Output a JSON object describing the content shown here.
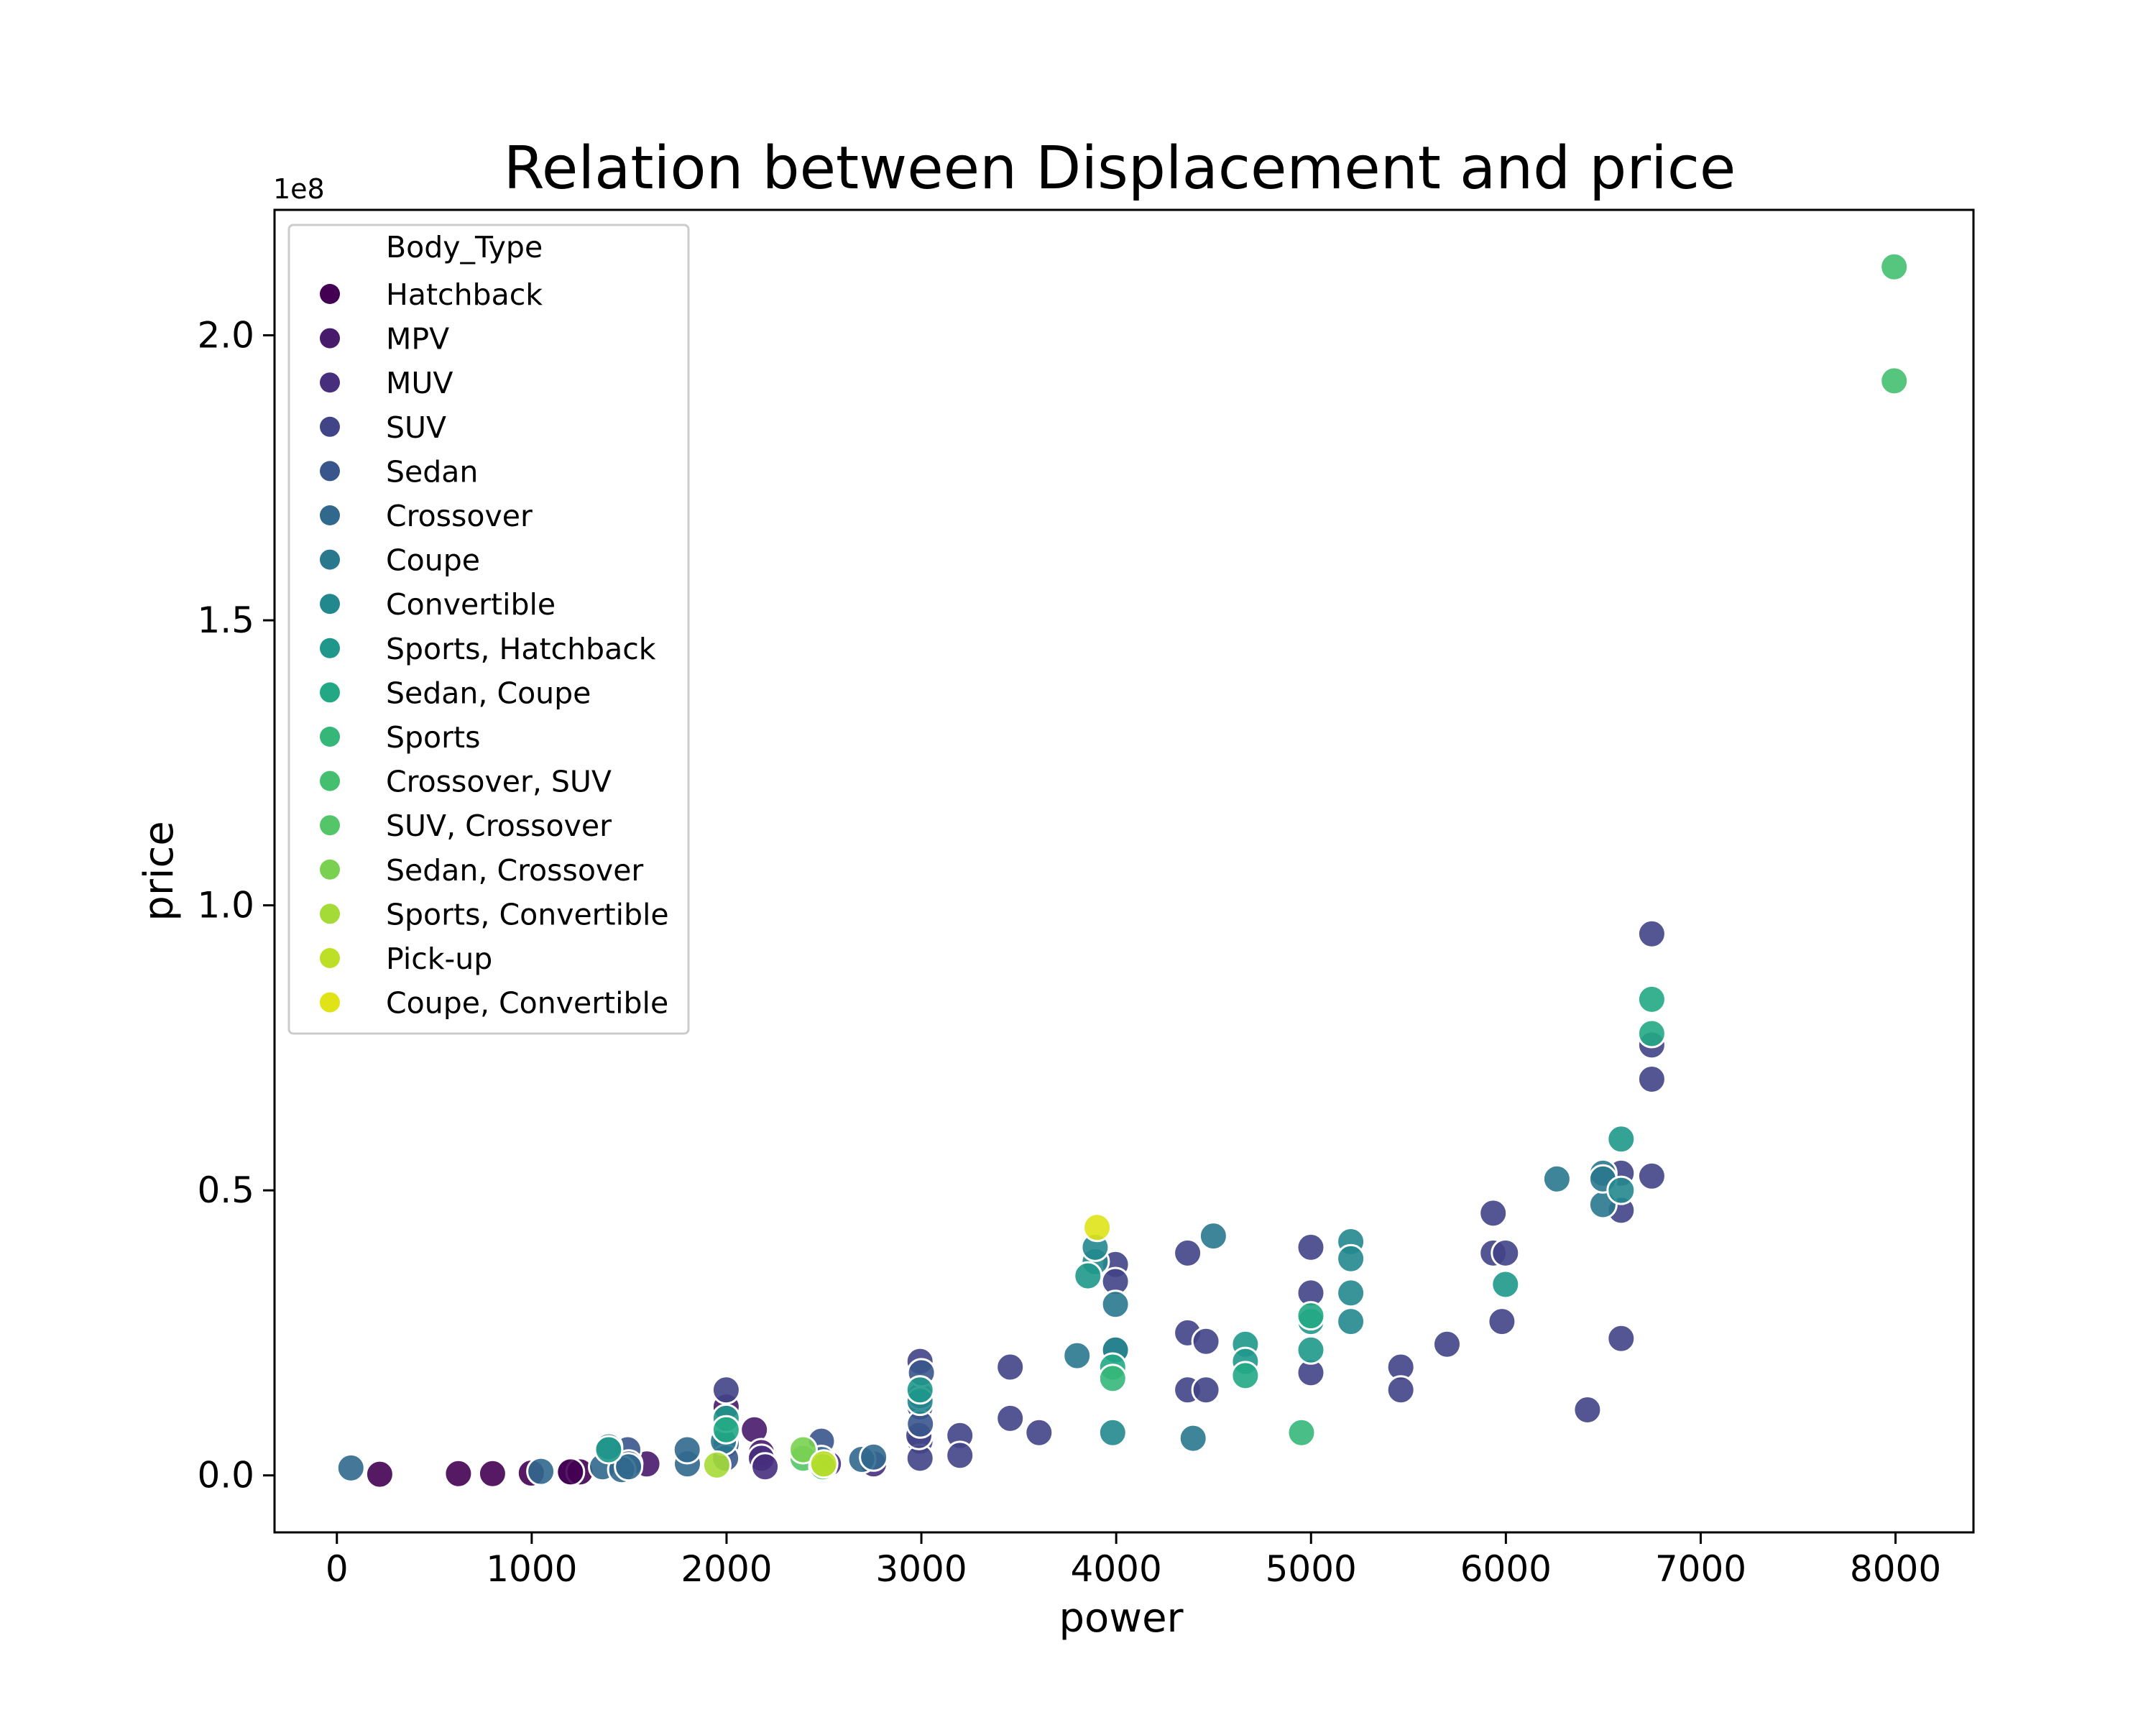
{
  "chart_data": {
    "type": "scatter",
    "title": "Relation between Displacement and price",
    "xlabel": "power",
    "ylabel": "price",
    "y_multiplier_label": "1e8",
    "xlim": [
      -320,
      8400
    ],
    "ylim": [
      -0.1,
      2.22
    ],
    "y_scale": 100000000,
    "x_ticks": [
      0,
      1000,
      2000,
      3000,
      4000,
      5000,
      6000,
      7000,
      8000
    ],
    "x_tick_labels": [
      "0",
      "1000",
      "2000",
      "3000",
      "4000",
      "5000",
      "6000",
      "7000",
      "8000"
    ],
    "y_ticks": [
      0.0,
      0.5,
      1.0,
      1.5,
      2.0
    ],
    "y_tick_labels": [
      "0.0",
      "0.5",
      "1.0",
      "1.5",
      "2.0"
    ],
    "grid": false,
    "legend": {
      "title": "Body_Type",
      "placement": "top-left"
    },
    "series": [
      {
        "name": "Hatchback",
        "color": "#440154",
        "points": [
          [
            220,
            0.002
          ],
          [
            624,
            0.003
          ],
          [
            799,
            0.003
          ],
          [
            998,
            0.004
          ],
          [
            1197,
            0.005
          ],
          [
            1248,
            0.006
          ],
          [
            1199,
            0.006
          ]
        ]
      },
      {
        "name": "MPV",
        "color": "#481a6c",
        "points": [
          [
            1497,
            0.012
          ],
          [
            1591,
            0.02
          ],
          [
            2143,
            0.08
          ],
          [
            1998,
            0.12
          ],
          [
            2179,
            0.04
          ],
          [
            2494,
            0.02
          ]
        ]
      },
      {
        "name": "MUV",
        "color": "#472f7d",
        "points": [
          [
            2179,
            0.03
          ],
          [
            2494,
            0.03
          ],
          [
            2523,
            0.02
          ],
          [
            2198,
            0.015
          ],
          [
            2755,
            0.02
          ]
        ]
      },
      {
        "name": "SUV",
        "color": "#414487",
        "points": [
          [
            1998,
            0.15
          ],
          [
            2993,
            0.2
          ],
          [
            2993,
            0.12
          ],
          [
            2993,
            0.06
          ],
          [
            2993,
            0.03
          ],
          [
            2987,
            0.07
          ],
          [
            3198,
            0.07
          ],
          [
            3198,
            0.035
          ],
          [
            3456,
            0.19
          ],
          [
            3456,
            0.1
          ],
          [
            3604,
            0.075
          ],
          [
            3996,
            0.37
          ],
          [
            3996,
            0.34
          ],
          [
            3996,
            0.22
          ],
          [
            4367,
            0.39
          ],
          [
            4367,
            0.25
          ],
          [
            4367,
            0.15
          ],
          [
            4461,
            0.235
          ],
          [
            4461,
            0.15
          ],
          [
            4999,
            0.4
          ],
          [
            4999,
            0.32
          ],
          [
            4999,
            0.18
          ],
          [
            5461,
            0.19
          ],
          [
            5461,
            0.15
          ],
          [
            5698,
            0.23
          ],
          [
            5935,
            0.46
          ],
          [
            5935,
            0.39
          ],
          [
            5998,
            0.39
          ],
          [
            5980,
            0.27
          ],
          [
            6592,
            0.465
          ],
          [
            6592,
            0.53
          ],
          [
            6592,
            0.24
          ],
          [
            6749,
            0.95
          ],
          [
            6749,
            0.755
          ],
          [
            6749,
            0.695
          ],
          [
            6749,
            0.525
          ],
          [
            6419,
            0.115
          ]
        ]
      },
      {
        "name": "Sedan",
        "color": "#39568c",
        "points": [
          [
            1493,
            0.045
          ],
          [
            1498,
            0.02
          ],
          [
            1998,
            0.055
          ],
          [
            1995,
            0.03
          ],
          [
            2487,
            0.06
          ],
          [
            2487,
            0.025
          ],
          [
            2995,
            0.14
          ],
          [
            3000,
            0.18
          ],
          [
            2995,
            0.09
          ]
        ]
      },
      {
        "name": "Crossover",
        "color": "#31688e",
        "points": [
          [
            72,
            0.013
          ],
          [
            1047,
            0.007
          ],
          [
            1364,
            0.015
          ],
          [
            1462,
            0.01
          ],
          [
            1497,
            0.015
          ],
          [
            1799,
            0.02
          ],
          [
            1798,
            0.045
          ],
          [
            2487,
            0.028
          ],
          [
            2694,
            0.028
          ],
          [
            2755,
            0.032
          ]
        ]
      },
      {
        "name": "Coupe",
        "color": "#2a788e",
        "points": [
          [
            1395,
            0.05
          ],
          [
            1984,
            0.06
          ],
          [
            3799,
            0.21
          ],
          [
            3996,
            0.3
          ],
          [
            4499,
            0.42
          ],
          [
            4395,
            0.065
          ],
          [
            6262,
            0.52
          ],
          [
            6498,
            0.53
          ],
          [
            6498,
            0.475
          ],
          [
            6498,
            0.52
          ]
        ]
      },
      {
        "name": "Convertible",
        "color": "#23888e",
        "points": [
          [
            2993,
            0.13
          ],
          [
            3892,
            0.375
          ],
          [
            3892,
            0.4
          ],
          [
            3996,
            0.22
          ],
          [
            3982,
            0.075
          ],
          [
            5204,
            0.41
          ],
          [
            5204,
            0.38
          ],
          [
            5204,
            0.32
          ],
          [
            5204,
            0.27
          ],
          [
            6592,
            0.5
          ]
        ]
      },
      {
        "name": "Sports, Hatchback",
        "color": "#1f988b",
        "points": [
          [
            1395,
            0.045
          ],
          [
            1998,
            0.1
          ],
          [
            2993,
            0.15
          ],
          [
            3855,
            0.35
          ],
          [
            4663,
            0.23
          ],
          [
            4663,
            0.2
          ],
          [
            4999,
            0.27
          ],
          [
            4999,
            0.22
          ],
          [
            5998,
            0.335
          ],
          [
            6592,
            0.59
          ]
        ]
      },
      {
        "name": "Sedan, Coupe",
        "color": "#22a884",
        "points": [
          [
            1998,
            0.08
          ],
          [
            3982,
            0.19
          ],
          [
            4663,
            0.175
          ],
          [
            4999,
            0.28
          ],
          [
            6749,
            0.835
          ],
          [
            6749,
            0.775
          ]
        ]
      },
      {
        "name": "Sports",
        "color": "#35b779",
        "points": [
          [
            3982,
            0.17
          ],
          [
            4951,
            0.075
          ]
        ]
      },
      {
        "name": "Crossover, SUV",
        "color": "#44bf70",
        "points": [
          [
            7993,
            2.12
          ],
          [
            7993,
            1.92
          ]
        ]
      },
      {
        "name": "SUV, Crossover",
        "color": "#54c568",
        "points": [
          [
            2393,
            0.03
          ],
          [
            2494,
            0.015
          ]
        ]
      },
      {
        "name": "Sedan, Crossover",
        "color": "#7ad151",
        "points": [
          [
            2393,
            0.045
          ]
        ]
      },
      {
        "name": "Sports, Convertible",
        "color": "#a5db36",
        "points": [
          [
            1950,
            0.018
          ]
        ]
      },
      {
        "name": "Pick-up",
        "color": "#bddf26",
        "points": [
          [
            2499,
            0.02
          ]
        ]
      },
      {
        "name": "Coupe, Convertible",
        "color": "#dfe318",
        "points": [
          [
            3902,
            0.435
          ]
        ]
      }
    ]
  }
}
